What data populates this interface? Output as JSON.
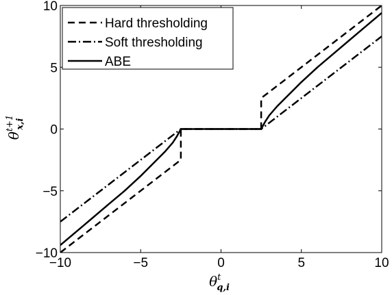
{
  "chart_data": {
    "type": "line",
    "title": "",
    "xlabel": "θ",
    "xlabel_sup": "t",
    "xlabel_sub": "q,i",
    "ylabel": "θ",
    "ylabel_sup": "t+1",
    "ylabel_sub": "x,i",
    "xlim": [
      -10,
      10
    ],
    "ylim": [
      -10,
      10
    ],
    "xticks": [
      -10,
      -5,
      0,
      5,
      10
    ],
    "yticks": [
      -10,
      -5,
      0,
      5,
      10
    ],
    "xtick_labels": [
      "−10",
      "−5",
      "0",
      "5",
      "10"
    ],
    "ytick_labels": [
      "−10",
      "−5",
      "0",
      "5",
      "10"
    ],
    "grid": false,
    "legend_position": "top-left",
    "series": [
      {
        "name": "Hard thresholding",
        "style": "dashed",
        "x": [
          -10,
          -2.5,
          -2.5,
          2.5,
          2.5,
          10
        ],
        "y": [
          -10,
          -2.5,
          0,
          0,
          2.5,
          10
        ]
      },
      {
        "name": "Soft thresholding",
        "style": "dashdot",
        "x": [
          -10,
          -2.5,
          2.5,
          10
        ],
        "y": [
          -7.5,
          0,
          0,
          7.5
        ]
      },
      {
        "name": "ABE",
        "style": "solid",
        "x": [
          -10,
          -9,
          -8,
          -7,
          -6,
          -5,
          -4,
          -3.5,
          -3,
          -2.75,
          -2.6,
          -2.5,
          2.5,
          2.6,
          2.75,
          3,
          3.5,
          4,
          5,
          6,
          7,
          8,
          9,
          10
        ],
        "y": [
          -9.4,
          -8.3,
          -7.2,
          -6.1,
          -5.0,
          -3.8,
          -2.5,
          -1.85,
          -1.1,
          -0.6,
          -0.25,
          0,
          0,
          0.25,
          0.6,
          1.1,
          1.85,
          2.5,
          3.8,
          5.0,
          6.1,
          7.2,
          8.3,
          9.4
        ]
      }
    ]
  }
}
